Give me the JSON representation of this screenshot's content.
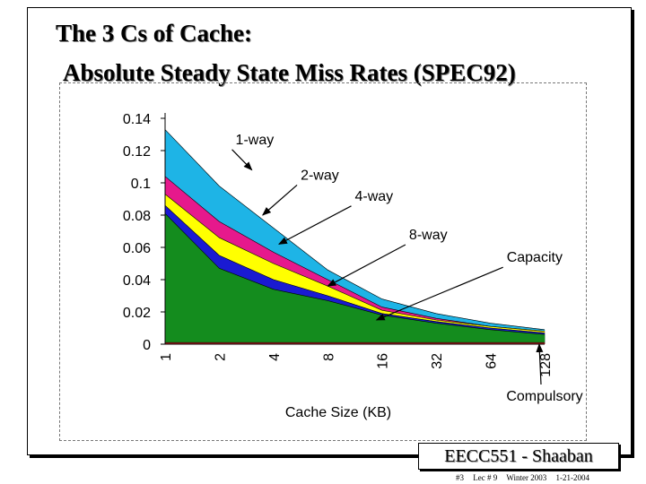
{
  "slide": {
    "title_line_1": "The 3 Cs of Cache:",
    "title_line_2": "Absolute Steady State Miss Rates (SPEC92)"
  },
  "footer": {
    "course": "EECC551 - Shaaban",
    "slide_no": "#3",
    "lecture": "Lec # 9",
    "term": "Winter 2003",
    "date": "1-21-2004"
  },
  "chart_data": {
    "type": "area",
    "stacked": false,
    "xlabel": "Cache Size (KB)",
    "categories": [
      "1",
      "2",
      "4",
      "8",
      "16",
      "32",
      "64",
      "128"
    ],
    "ylim": [
      0,
      0.14
    ],
    "yticks": [
      "0",
      "0.02",
      "0.04",
      "0.06",
      "0.08",
      "0.1",
      "0.12",
      "0.14"
    ],
    "series": [
      {
        "name": "1-way",
        "color": "#1eb4e6",
        "values": [
          0.133,
          0.098,
          0.072,
          0.046,
          0.028,
          0.019,
          0.013,
          0.009
        ]
      },
      {
        "name": "2-way",
        "color": "#e6198c",
        "values": [
          0.104,
          0.076,
          0.057,
          0.04,
          0.023,
          0.016,
          0.011,
          0.008
        ]
      },
      {
        "name": "4-way",
        "color": "#ffff00",
        "values": [
          0.093,
          0.066,
          0.05,
          0.036,
          0.021,
          0.015,
          0.011,
          0.008
        ]
      },
      {
        "name": "8-way",
        "color": "#1a1ad2",
        "values": [
          0.086,
          0.055,
          0.04,
          0.03,
          0.019,
          0.014,
          0.01,
          0.007
        ]
      },
      {
        "name": "Capacity",
        "color": "#148c1e",
        "values": [
          0.081,
          0.047,
          0.034,
          0.027,
          0.018,
          0.013,
          0.009,
          0.006
        ]
      },
      {
        "name": "Compulsory",
        "color": "#cc2222",
        "values": [
          0.001,
          0.001,
          0.001,
          0.001,
          0.001,
          0.001,
          0.001,
          0.001
        ]
      }
    ],
    "annotations": [
      {
        "label": "1-way",
        "x": 1.3,
        "y": 0.124,
        "target_x": 1.6,
        "target_y": 0.108
      },
      {
        "label": "2-way",
        "x": 2.5,
        "y": 0.102,
        "target_x": 1.8,
        "target_y": 0.08
      },
      {
        "label": "4-way",
        "x": 3.5,
        "y": 0.089,
        "target_x": 2.1,
        "target_y": 0.062
      },
      {
        "label": "8-way",
        "x": 4.5,
        "y": 0.065,
        "target_x": 3.0,
        "target_y": 0.036
      },
      {
        "label": "Capacity",
        "x": 6.3,
        "y": 0.051,
        "target_x": 3.9,
        "target_y": 0.015
      },
      {
        "label": "Compulsory",
        "x": 7.0,
        "y": -0.035,
        "target_x": 6.9,
        "target_y": 0.0
      }
    ],
    "grid": false,
    "legend": "none"
  }
}
